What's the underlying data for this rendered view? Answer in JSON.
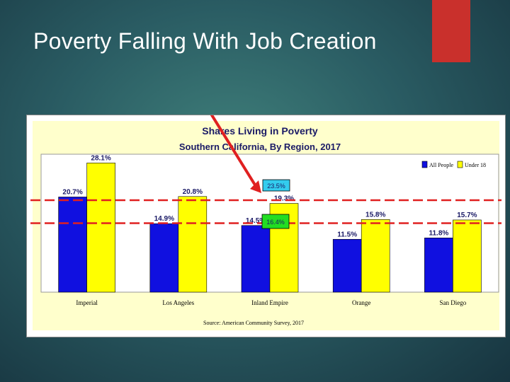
{
  "slide": {
    "title": "Poverty Falling With Job Creation",
    "accent_color": "#c9302c"
  },
  "chart_data": {
    "type": "bar",
    "title": "Shares Living in Poverty",
    "subtitle": "Southern California, By Region, 2017",
    "source": "Source: American Community Survey, 2017",
    "categories": [
      "Imperial",
      "Los Angeles",
      "Inland Empire",
      "Orange",
      "San Diego"
    ],
    "series": [
      {
        "name": "All People",
        "color": "#1010e0",
        "values": [
          20.7,
          14.9,
          14.5,
          11.5,
          11.8
        ],
        "labels": [
          "20.7%",
          "14.9%",
          "14.5%",
          "11.5%",
          "11.8%"
        ]
      },
      {
        "name": "Under 18",
        "color": "#ffff00",
        "values": [
          28.1,
          20.8,
          19.3,
          15.8,
          15.7
        ],
        "labels": [
          "28.1%",
          "20.8%",
          "19.3%",
          "15.8%",
          "15.7%"
        ]
      }
    ],
    "ylim": [
      0,
      30
    ],
    "legend_position": "top-right",
    "annotations": {
      "callout_high": "23.5%",
      "callout_low": "16.4%",
      "line_high_value": 20.0,
      "line_low_value": 15.0
    }
  }
}
